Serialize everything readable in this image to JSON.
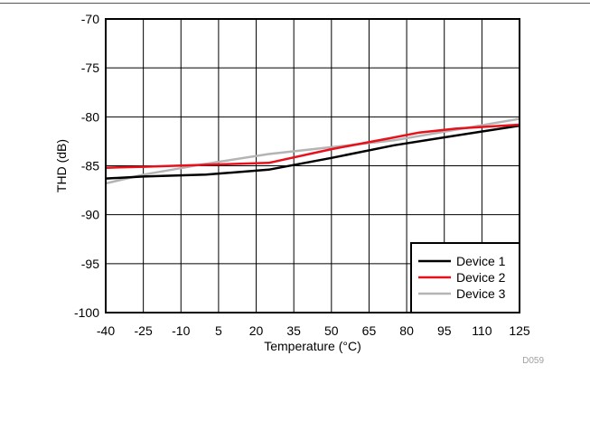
{
  "chart_data": {
    "type": "line",
    "title": "",
    "xlabel": "Temperature (°C)",
    "ylabel": "THD (dB)",
    "xlim": [
      -40,
      125
    ],
    "ylim": [
      -100,
      -70
    ],
    "xticks": [
      -40,
      -25,
      -10,
      5,
      20,
      35,
      50,
      65,
      80,
      95,
      110,
      125
    ],
    "yticks": [
      -70,
      -75,
      -80,
      -85,
      -90,
      -95,
      -100
    ],
    "grid": true,
    "legend_position": "bottom-right",
    "figure_id": "D059",
    "series": [
      {
        "name": "Device 1",
        "color": "#000000",
        "x": [
          -40,
          -25,
          0,
          25,
          50,
          75,
          100,
          125
        ],
        "y": [
          -86.3,
          -86.1,
          -85.9,
          -85.4,
          -84.2,
          -82.9,
          -81.9,
          -80.9
        ]
      },
      {
        "name": "Device 2",
        "color": "#e8101a",
        "x": [
          -40,
          -25,
          0,
          25,
          50,
          75,
          85,
          100,
          125
        ],
        "y": [
          -85.2,
          -85.1,
          -84.9,
          -84.7,
          -83.3,
          -82.1,
          -81.6,
          -81.2,
          -80.8
        ]
      },
      {
        "name": "Device 3",
        "color": "#b4b4b4",
        "x": [
          -40,
          -25,
          0,
          25,
          50,
          75,
          100,
          125
        ],
        "y": [
          -86.8,
          -85.9,
          -84.8,
          -83.8,
          -83.1,
          -82.4,
          -81.3,
          -80.2
        ]
      }
    ]
  }
}
